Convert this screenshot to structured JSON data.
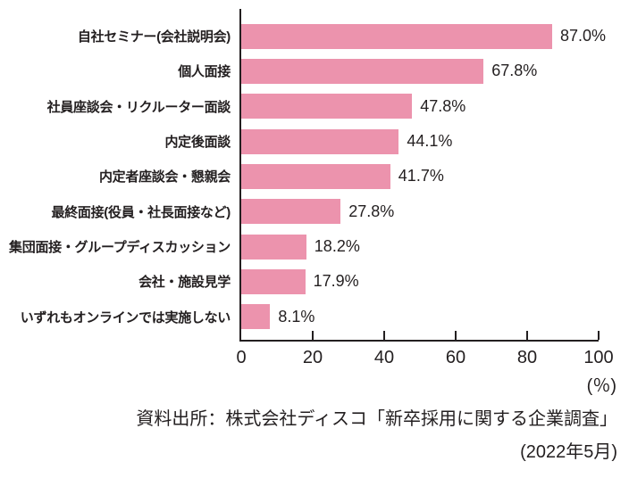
{
  "chart_data": {
    "type": "bar",
    "orientation": "horizontal",
    "categories": [
      "自社セミナー(会社説明会)",
      "個人面接",
      "社員座談会・リクルーター面談",
      "内定後面談",
      "内定者座談会・懇親会",
      "最終面接(役員・社長面接など)",
      "集団面接・グループディスカッション",
      "会社・施設見学",
      "いずれもオンラインでは実施しない"
    ],
    "values": [
      87.0,
      67.8,
      47.8,
      44.1,
      41.7,
      27.8,
      18.2,
      17.9,
      8.1
    ],
    "value_labels": [
      "87.0%",
      "67.8%",
      "47.8%",
      "44.1%",
      "41.7%",
      "27.8%",
      "18.2%",
      "17.9%",
      "8.1%"
    ],
    "xlabel": "(％)",
    "xlim": [
      0,
      100
    ],
    "x_ticks": [
      0,
      20,
      40,
      60,
      80,
      100
    ],
    "grid": false,
    "legend": "none",
    "bar_color": "#ec93ad",
    "axis_color": "#231f20",
    "text_color": "#231f20",
    "source_lines": [
      "資料出所：株式会社ディスコ「新卒採用に関する企業調査」",
      "(2022年5月)"
    ]
  }
}
